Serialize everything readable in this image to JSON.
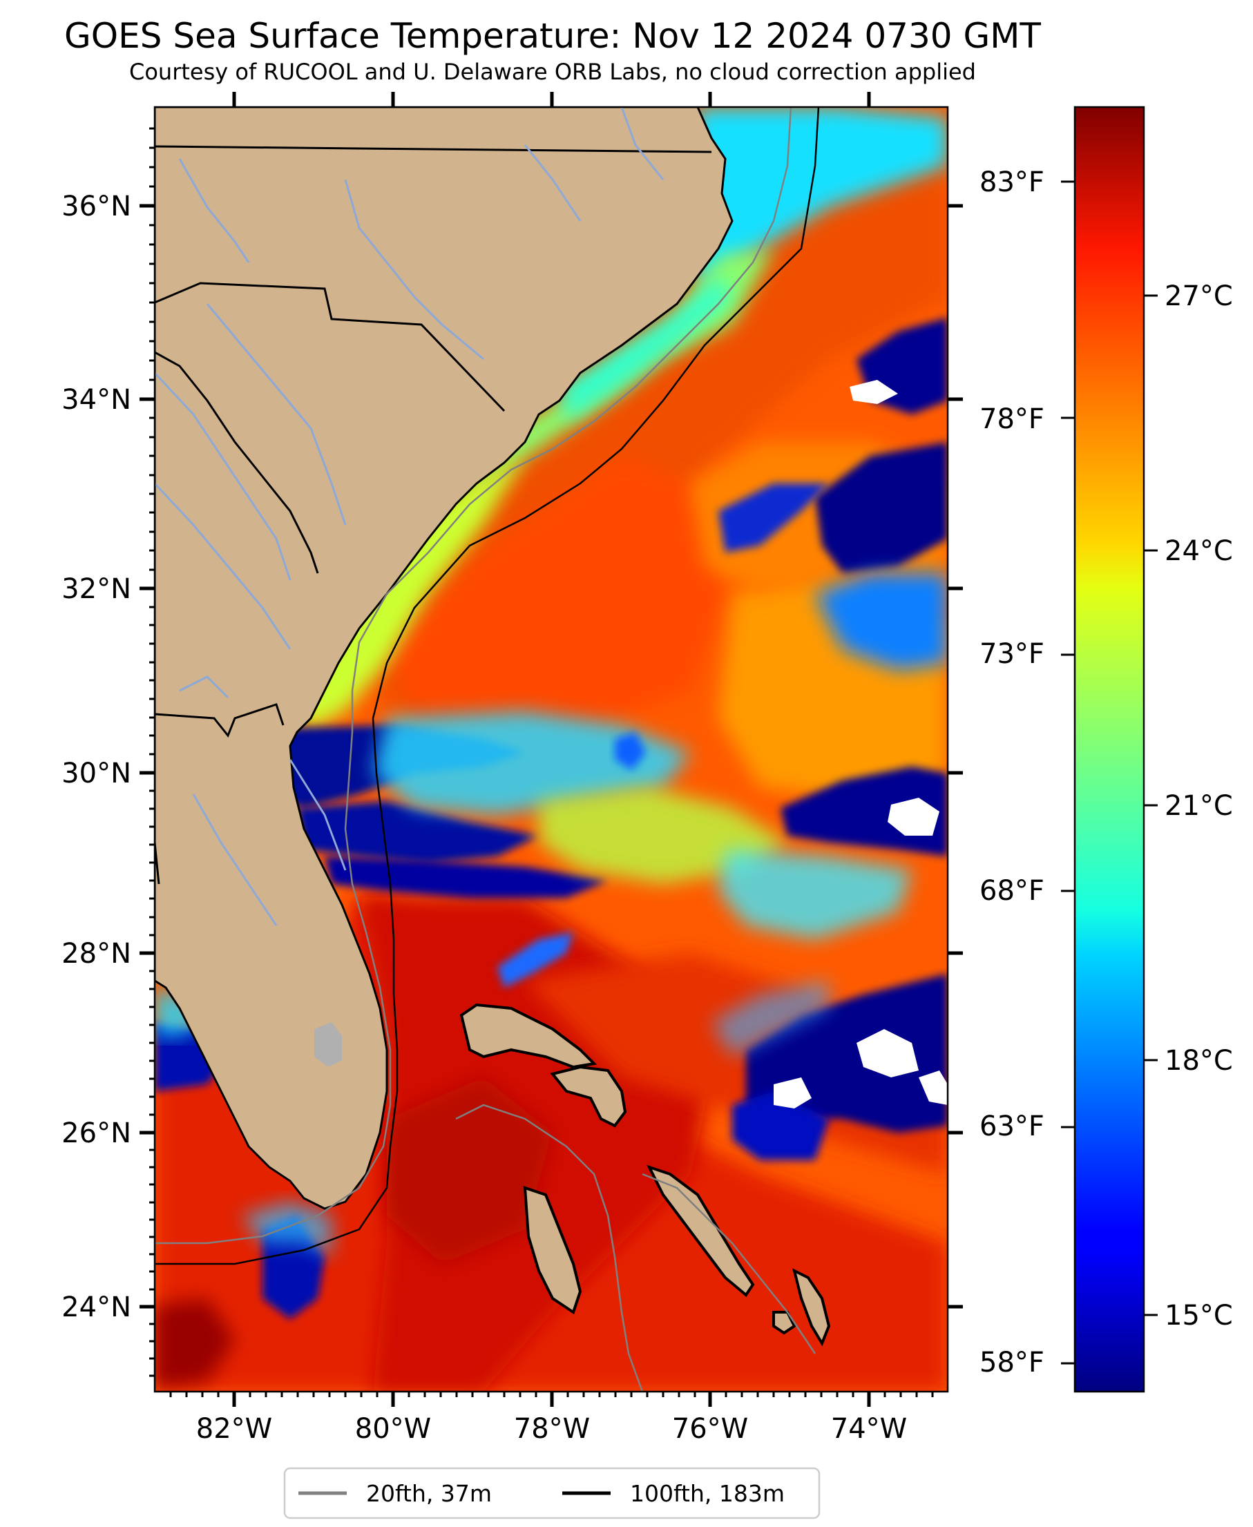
{
  "title": "GOES Sea Surface Temperature: Nov 12 2024 0730 GMT",
  "subtitle": "Courtesy of RUCOOL and U. Delaware ORB Labs, no cloud correction applied",
  "colors": {
    "land": "#d1b38d",
    "border": "#000000",
    "rivers": "#8ea9d6",
    "isobath_20fth": "#808080",
    "isobath_100fth": "#000000",
    "cold": "#000080",
    "hot": "#800000"
  },
  "map": {
    "lon_range": [
      -83.0,
      -73.0
    ],
    "lat_range": [
      23.1,
      37.0
    ],
    "lat_labels": [
      "36°N",
      "34°N",
      "32°N",
      "30°N",
      "28°N",
      "26°N",
      "24°N"
    ],
    "lon_labels": [
      "82°W",
      "80°W",
      "78°W",
      "76°W",
      "74°W"
    ],
    "fahrenheit_labels": [
      "83°F",
      "78°F",
      "73°F",
      "68°F",
      "63°F",
      "58°F"
    ]
  },
  "colorbar": {
    "colormap": "jet",
    "labels": [
      "27°C",
      "24°C",
      "21°C",
      "18°C",
      "15°C"
    ]
  },
  "legend": {
    "items": [
      {
        "label": "20fth, 37m",
        "color": "#808080"
      },
      {
        "label": "100fth, 183m",
        "color": "#000000"
      }
    ]
  }
}
